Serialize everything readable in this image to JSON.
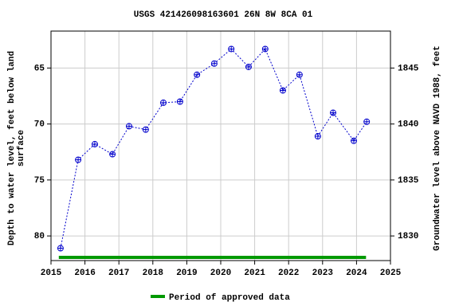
{
  "chart_data": {
    "type": "line",
    "title": "USGS 421426098163601 26N 8W 8CA  01",
    "ylabel": [
      "Depth to water level, feet below land",
      "surface"
    ],
    "y2label": "Groundwater level above NAVD 1988, feet",
    "x": [
      2015.28,
      2015.8,
      2016.29,
      2016.81,
      2017.3,
      2017.79,
      2018.31,
      2018.8,
      2019.3,
      2019.81,
      2020.31,
      2020.82,
      2021.31,
      2021.83,
      2022.32,
      2022.86,
      2023.31,
      2023.92,
      2024.3
    ],
    "series": [
      {
        "name": "Depth to water level",
        "color": "#0000cc",
        "values": [
          81.1,
          73.2,
          71.8,
          72.7,
          70.2,
          70.5,
          68.1,
          68.0,
          65.6,
          64.6,
          63.3,
          64.9,
          63.3,
          67.0,
          65.6,
          71.1,
          69.0,
          71.5,
          69.8
        ]
      }
    ],
    "approved": {
      "name": "Period of approved data",
      "color": "#009900",
      "range": [
        2015.23,
        2024.28
      ]
    },
    "xlim": [
      2015,
      2025
    ],
    "xticks": [
      2015,
      2016,
      2017,
      2018,
      2019,
      2020,
      2021,
      2022,
      2023,
      2024,
      2025
    ],
    "ylim": [
      61.7,
      82.2
    ],
    "yticks": [
      65,
      70,
      75,
      80
    ],
    "y2lim": [
      1848.3,
      1827.8
    ],
    "y2ticks": [
      1830,
      1835,
      1840,
      1845
    ],
    "grid": true
  }
}
